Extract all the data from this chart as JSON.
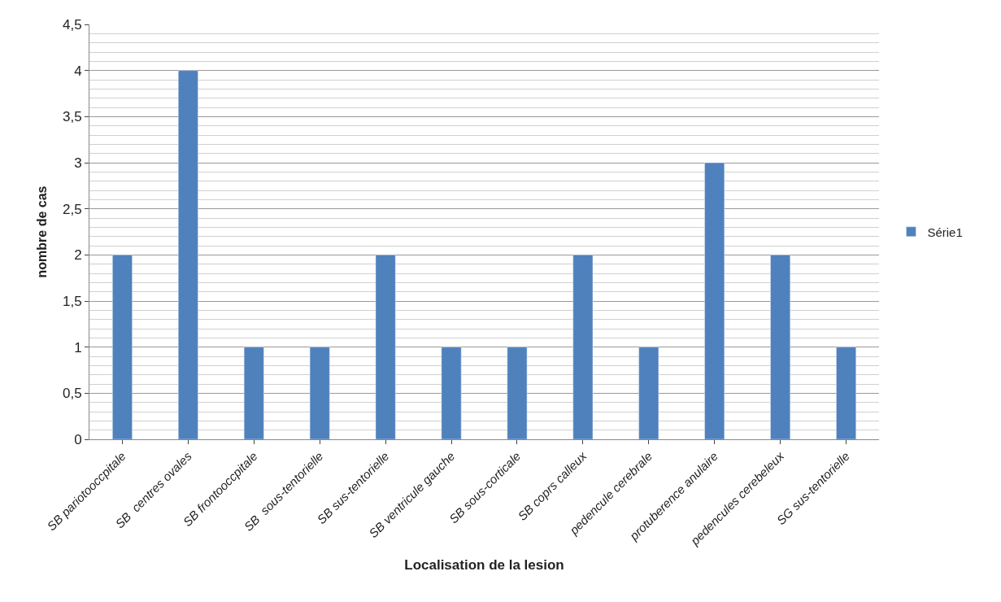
{
  "chart_data": {
    "type": "bar",
    "xlabel": "Localisation de la lesion",
    "ylabel": "nombre de cas",
    "categories": [
      "SB pariotooccpitale",
      "SB  centres ovales",
      "SB frontooccpitale",
      "SB  sous-tentorielle",
      "SB sus-tentorielle",
      "SB ventricule gauche",
      "SB sous-corticale",
      "SB coprs calleux",
      "pedencule cerebrale",
      "protuberence anulaire",
      "pedencules cerebeleux",
      "SG sus-tentorielle"
    ],
    "series": [
      {
        "name": "Série1",
        "color": "#4f81bd",
        "values": [
          2,
          4,
          1,
          1,
          2,
          1,
          1,
          2,
          1,
          3,
          2,
          1
        ]
      }
    ],
    "ylim": [
      0,
      4.5
    ],
    "yticks": [
      0,
      {
        "value": 0.5,
        "label": "0,5"
      },
      1,
      {
        "value": 1.5,
        "label": "1,5"
      },
      2,
      {
        "value": 2.5,
        "label": "2,5"
      },
      3,
      {
        "value": 3.5,
        "label": "3,5"
      },
      4,
      {
        "value": 4.5,
        "label": "4,5"
      }
    ],
    "grid": "y",
    "legend": "right"
  }
}
